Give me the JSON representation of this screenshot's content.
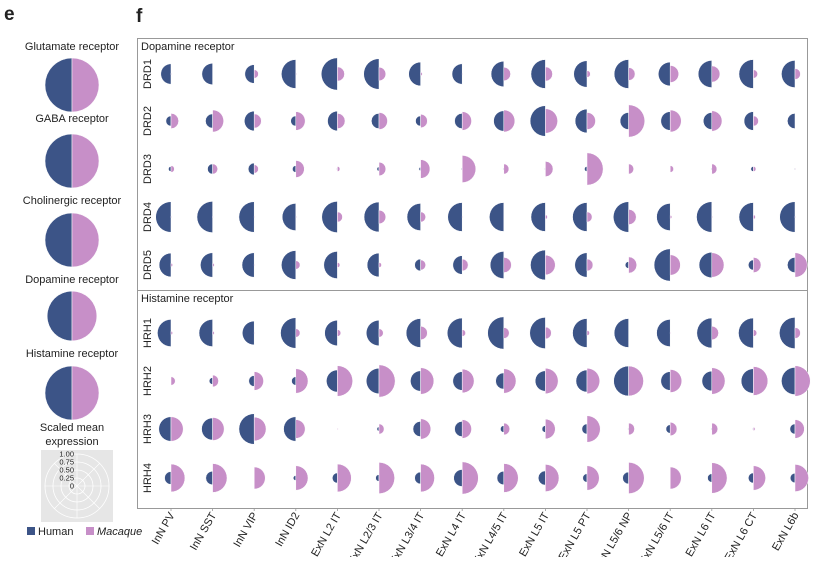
{
  "panels": {
    "e": "e",
    "f": "f"
  },
  "colors": {
    "human": "#3c5487",
    "macaque": "#c78fc8",
    "frame": "#999999",
    "legend_bg": "#e6e6e6"
  },
  "panel_e": {
    "items": [
      {
        "label": "Glutamate receptor",
        "human": 1.0,
        "macaque": 1.0
      },
      {
        "label": "GABA receptor",
        "human": 1.0,
        "macaque": 1.0
      },
      {
        "label": "Cholinergic receptor",
        "human": 1.0,
        "macaque": 1.0
      },
      {
        "label": "Dopamine receptor",
        "human": 0.92,
        "macaque": 0.92
      },
      {
        "label": "Histamine receptor",
        "human": 1.0,
        "macaque": 1.0
      }
    ],
    "scale_title_1": "Scaled mean",
    "scale_title_2": "expression",
    "scale_ticks": [
      "1.00",
      "0.75",
      "0.50",
      "0.25",
      "0"
    ],
    "legend": [
      {
        "label": "Human",
        "italic": false
      },
      {
        "label": "Macaque",
        "italic": true
      }
    ]
  },
  "chart_data": {
    "type": "half-circle dot matrix",
    "value_range": [
      0,
      1
    ],
    "value_label": "Scaled mean expression",
    "columns": [
      "InN PV",
      "InN SST",
      "InN VIP",
      "InN ID2",
      "ExN L2 IT",
      "ExN L2/3 IT",
      "ExN L3/4 IT",
      "ExN L4 IT",
      "ExN L4/5 IT",
      "ExN L5 IT",
      "ExN L5 PT",
      "ExN L5/6 NP",
      "ExN L5/6 IT",
      "ExN L6 IT",
      "ExN L6 CT",
      "ExN L6b"
    ],
    "groups": [
      {
        "title": "Dopamine receptor",
        "rows": [
          {
            "gene": "DRD1",
            "human": [
              0.6,
              0.63,
              0.55,
              0.85,
              0.95,
              0.9,
              0.7,
              0.6,
              0.75,
              0.85,
              0.78,
              0.85,
              0.7,
              0.8,
              0.85,
              0.8
            ],
            "macaque": [
              0.05,
              0,
              0.25,
              0.05,
              0.42,
              0.4,
              0.1,
              0.05,
              0.4,
              0.42,
              0.2,
              0.38,
              0.5,
              0.48,
              0.25,
              0.32
            ]
          },
          {
            "gene": "DRD2",
            "human": [
              0.3,
              0.42,
              0.58,
              0.3,
              0.58,
              0.45,
              0.3,
              0.45,
              0.6,
              0.9,
              0.7,
              0.5,
              0.55,
              0.5,
              0.55,
              0.45
            ],
            "macaque": [
              0.45,
              0.65,
              0.42,
              0.55,
              0.45,
              0.5,
              0.4,
              0.55,
              0.65,
              0.72,
              0.5,
              0.95,
              0.65,
              0.6,
              0.3,
              0
            ]
          },
          {
            "gene": "DRD3",
            "human": [
              0.15,
              0.3,
              0.35,
              0.2,
              0.05,
              0.12,
              0.1,
              0.05,
              0.05,
              0.05,
              0.15,
              0,
              0,
              0.05,
              0.15,
              0.05
            ],
            "macaque": [
              0.2,
              0.3,
              0.25,
              0.5,
              0.15,
              0.4,
              0.55,
              0.8,
              0.3,
              0.45,
              0.95,
              0.3,
              0.2,
              0.3,
              0.15,
              0.05
            ]
          },
          {
            "gene": "DRD4",
            "human": [
              0.9,
              0.92,
              0.9,
              0.8,
              0.92,
              0.88,
              0.8,
              0.85,
              0.85,
              0.85,
              0.85,
              0.9,
              0.8,
              0.9,
              0.85,
              0.9
            ],
            "macaque": [
              0.05,
              0.05,
              0.05,
              0.05,
              0.3,
              0.4,
              0.3,
              0.05,
              0,
              0.12,
              0.3,
              0.45,
              0.1,
              0.05,
              0.12,
              0.05
            ]
          },
          {
            "gene": "DRD5",
            "human": [
              0.7,
              0.72,
              0.72,
              0.85,
              0.8,
              0.7,
              0.35,
              0.55,
              0.8,
              0.88,
              0.72,
              0.2,
              0.95,
              0.75,
              0.3,
              0.45
            ],
            "macaque": [
              0.1,
              0.1,
              0.05,
              0.25,
              0.15,
              0.15,
              0.3,
              0.35,
              0.45,
              0.58,
              0.35,
              0.48,
              0.6,
              0.72,
              0.45,
              0.72
            ]
          }
        ]
      },
      {
        "title": "Histamine receptor",
        "rows": [
          {
            "gene": "HRH1",
            "human": [
              0.8,
              0.8,
              0.7,
              0.9,
              0.75,
              0.75,
              0.85,
              0.88,
              0.95,
              0.92,
              0.85,
              0.85,
              0.8,
              0.88,
              0.88,
              0.92
            ],
            "macaque": [
              0.1,
              0.1,
              0.05,
              0.25,
              0.2,
              0.25,
              0.4,
              0.2,
              0.32,
              0.35,
              0.15,
              0,
              0.05,
              0.4,
              0.2,
              0.32
            ]
          },
          {
            "gene": "HRH2",
            "human": [
              0,
              0.2,
              0.32,
              0.25,
              0.65,
              0.75,
              0.6,
              0.55,
              0.48,
              0.6,
              0.65,
              0.88,
              0.55,
              0.58,
              0.72,
              0.8
            ],
            "macaque": [
              0.25,
              0.35,
              0.55,
              0.72,
              0.9,
              0.95,
              0.78,
              0.7,
              0.72,
              0.75,
              0.75,
              0.88,
              0.68,
              0.78,
              0.85,
              0.9
            ]
          },
          {
            "gene": "HRH3",
            "human": [
              0.72,
              0.65,
              0.9,
              0.72,
              0,
              0.12,
              0.45,
              0.45,
              0.2,
              0.2,
              0.3,
              0.05,
              0.25,
              0.05,
              0.05,
              0.3
            ],
            "macaque": [
              0.72,
              0.68,
              0.7,
              0.55,
              0.05,
              0.3,
              0.6,
              0.55,
              0.35,
              0.58,
              0.78,
              0.35,
              0.4,
              0.35,
              0.1,
              0.55
            ]
          },
          {
            "gene": "HRH4",
            "human": [
              0.38,
              0.4,
              0,
              0.15,
              0.3,
              0.2,
              0.35,
              0.5,
              0.4,
              0.42,
              0.25,
              0.35,
              0,
              0.25,
              0.3,
              0.28
            ],
            "macaque": [
              0.82,
              0.85,
              0.65,
              0.72,
              0.82,
              0.92,
              0.82,
              0.95,
              0.85,
              0.8,
              0.72,
              0.92,
              0.65,
              0.9,
              0.72,
              0.8
            ]
          }
        ]
      }
    ]
  }
}
